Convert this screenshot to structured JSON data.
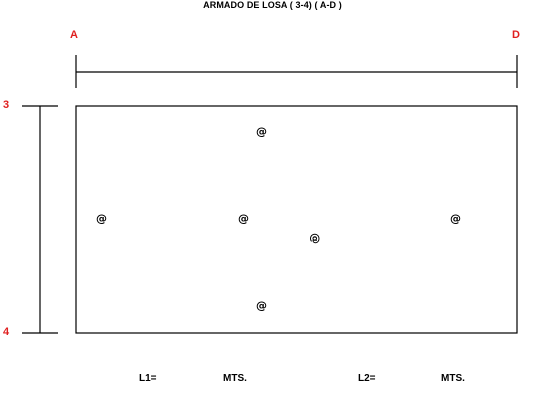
{
  "title": "ARMADO DE LOSA ( 3-4) ( A-D )",
  "axes": {
    "left_top": "A",
    "right_top": "D",
    "side_top": "3",
    "side_bottom": "4"
  },
  "rebar_marks": {
    "top": "@",
    "left": "@",
    "center": "@",
    "center_right": "@",
    "right": "@",
    "bottom": "@"
  },
  "footer": {
    "l1_label": "L1=",
    "l1_unit": "MTS.",
    "l2_label": "L2=",
    "l2_unit": "MTS."
  }
}
